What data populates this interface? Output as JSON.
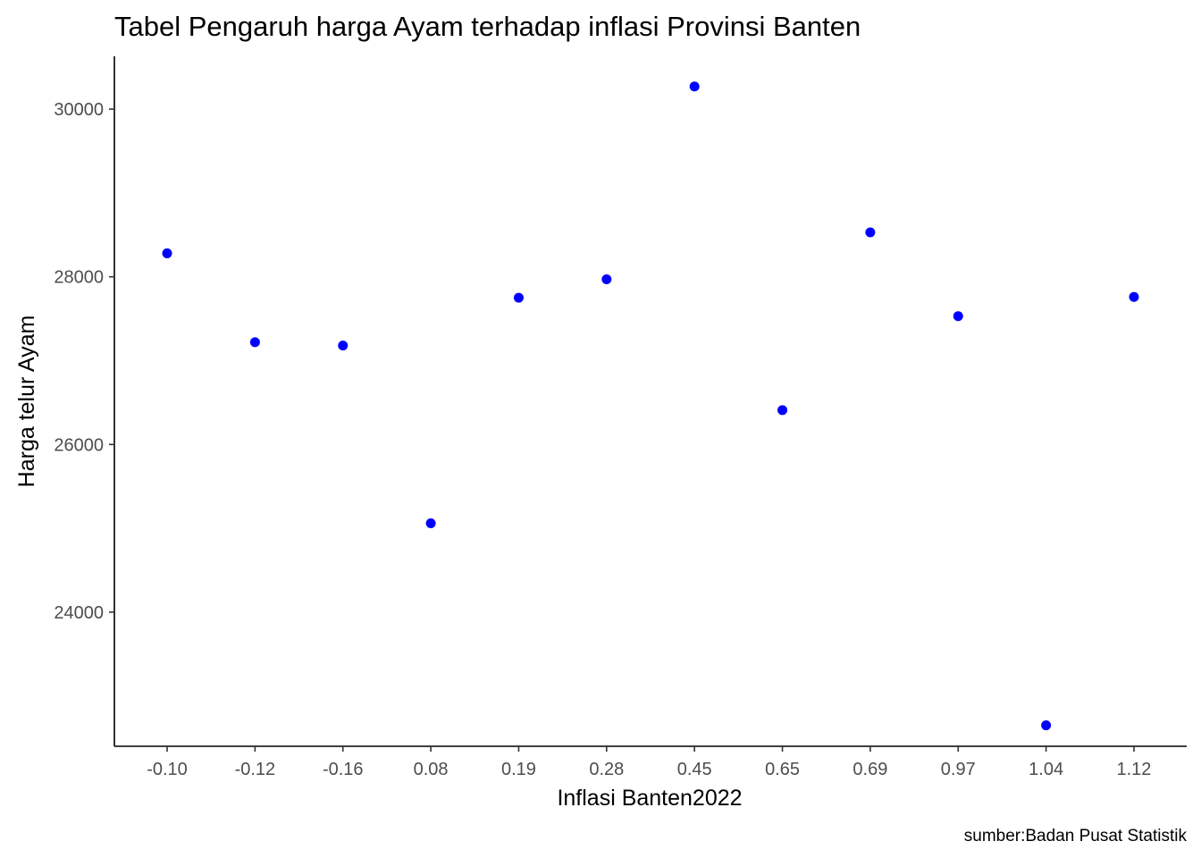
{
  "chart_data": {
    "type": "scatter",
    "title": "Tabel Pengaruh harga Ayam terhadap inflasi Provinsi Banten",
    "xlabel": "Inflasi Banten2022",
    "ylabel": "Harga telur Ayam",
    "caption": "sumber:Badan Pusat Statistik",
    "x_axis_type": "categorical",
    "categories": [
      "-0.10",
      "-0.12",
      "-0.16",
      "0.08",
      "0.19",
      "0.28",
      "0.45",
      "0.65",
      "0.69",
      "0.97",
      "1.04",
      "1.12"
    ],
    "values": [
      28280,
      27220,
      27180,
      25060,
      27750,
      27970,
      30270,
      26410,
      28530,
      27530,
      22650,
      27760
    ],
    "ylim": [
      22400,
      30630
    ],
    "yticks": [
      24000,
      26000,
      28000,
      30000
    ],
    "ytick_labels": [
      "24000",
      "26000",
      "28000",
      "30000"
    ],
    "point_color": "#0000ff",
    "grid": false,
    "legend": "none"
  }
}
